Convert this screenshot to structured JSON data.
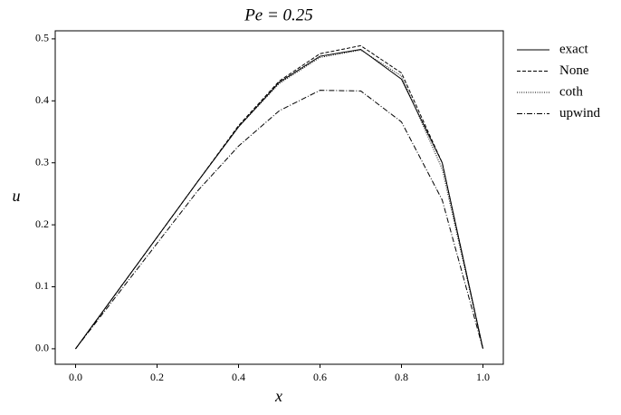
{
  "chart_data": {
    "type": "line",
    "title": "Pe = 0.25",
    "x_label": "x",
    "y_label": "u",
    "x": [
      0.0,
      0.1,
      0.2,
      0.3,
      0.4,
      0.5,
      0.6,
      0.7,
      0.8,
      0.9,
      1.0
    ],
    "series": [
      {
        "name": "exact",
        "color": "#000000",
        "dash": "solid",
        "values": [
          0,
          0.09,
          0.18,
          0.27,
          0.358,
          0.43,
          0.472,
          0.483,
          0.435,
          0.3,
          0
        ]
      },
      {
        "name": "None",
        "color": "#000000",
        "dash": "dashed",
        "values": [
          0,
          0.09,
          0.18,
          0.27,
          0.36,
          0.432,
          0.476,
          0.489,
          0.445,
          0.3,
          0
        ]
      },
      {
        "name": "coth",
        "color": "#000000",
        "dash": "dotted",
        "values": [
          0,
          0.09,
          0.18,
          0.27,
          0.358,
          0.428,
          0.47,
          0.482,
          0.44,
          0.29,
          0
        ]
      },
      {
        "name": "upwind",
        "color": "#000000",
        "dash": "dashdot",
        "values": [
          0,
          0.085,
          0.17,
          0.255,
          0.327,
          0.384,
          0.417,
          0.416,
          0.366,
          0.24,
          0
        ]
      }
    ],
    "xlim": [
      -0.05,
      1.05
    ],
    "ylim": [
      -0.025,
      0.513
    ],
    "xticks": [
      {
        "value": 0,
        "label": "0.0"
      },
      0.2,
      0.4,
      0.6,
      0.8,
      {
        "value": 1,
        "label": "1.0"
      }
    ],
    "yticks": [
      {
        "value": 0,
        "label": "0.0"
      },
      0.1,
      0.2,
      0.3,
      0.4,
      0.5
    ],
    "legend": "outside-right",
    "grid": false
  }
}
